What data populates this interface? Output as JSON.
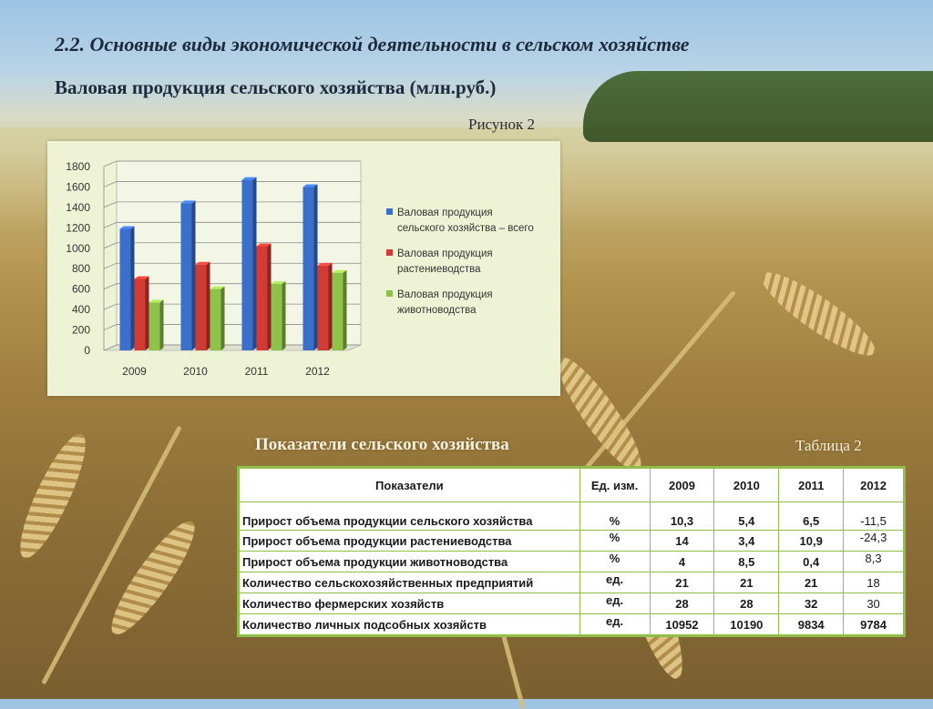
{
  "slide": {
    "title": "2.2. Основные виды экономической деятельности в сельском хозяйстве",
    "subtitle": "Валовая продукция сельского хозяйства (млн.руб.)",
    "figure_caption": "Рисунок 2"
  },
  "chart_data": {
    "type": "bar",
    "title": "",
    "xlabel": "",
    "ylabel": "",
    "categories": [
      "2009",
      "2010",
      "2011",
      "2012"
    ],
    "y_ticks": [
      "0",
      "200",
      "400",
      "600",
      "800",
      "1000",
      "1200",
      "1400",
      "1600",
      "1800"
    ],
    "ylim": [
      0,
      1800
    ],
    "grid": true,
    "legend_position": "right",
    "series": [
      {
        "name": "Валовая продукция сельского хозяйства – всего",
        "name_lines": [
          "Валовая продукция",
          "сельского хозяйства – всего"
        ],
        "color": "#3a6fcc",
        "values": [
          1190,
          1440,
          1670,
          1600
        ]
      },
      {
        "name": "Валовая продукция растениеводства",
        "name_lines": [
          "Валовая продукция",
          "растениеводства"
        ],
        "color": "#d23b34",
        "values": [
          700,
          840,
          1020,
          830
        ]
      },
      {
        "name": "Валовая продукция животноводства",
        "name_lines": [
          "Валовая продукция",
          "животноводства"
        ],
        "color": "#8fc24a",
        "values": [
          470,
          600,
          650,
          760
        ]
      }
    ]
  },
  "table": {
    "title": "Показатели сельского хозяйства",
    "caption": "Таблица 2",
    "headers": [
      "Показатели",
      "Ед. изм.",
      "2009",
      "2010",
      "2011",
      "2012"
    ],
    "rows": [
      [
        "Прирост объема продукции сельского хозяйства",
        "%",
        "10,3",
        "5,4",
        "6,5",
        "-11,5"
      ],
      [
        "Прирост объема продукции растениеводства",
        "%",
        "14",
        "3,4",
        "10,9",
        "-24,3"
      ],
      [
        "Прирост объема продукции животноводства",
        "%",
        "4",
        "8,5",
        "0,4",
        "8,3"
      ],
      [
        "Количество сельскохозяйственных предприятий",
        "ед.",
        "21",
        "21",
        "21",
        "18"
      ],
      [
        "Количество фермерских хозяйств",
        "ед.",
        "28",
        "28",
        "32",
        "30"
      ],
      [
        "Количество личных подсобных хозяйств",
        "ед.",
        "10952",
        "10190",
        "9834",
        "9784"
      ]
    ]
  }
}
